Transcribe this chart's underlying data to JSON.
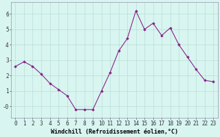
{
  "x": [
    0,
    1,
    2,
    3,
    4,
    5,
    6,
    7,
    8,
    9,
    10,
    11,
    12,
    13,
    14,
    15,
    16,
    17,
    18,
    19,
    20,
    21,
    22,
    23
  ],
  "y": [
    2.6,
    2.9,
    2.6,
    2.1,
    1.5,
    1.1,
    0.7,
    -0.2,
    -0.2,
    -0.2,
    1.0,
    2.2,
    3.6,
    4.4,
    6.2,
    5.0,
    5.4,
    4.6,
    5.1,
    4.0,
    3.2,
    2.4,
    1.7,
    1.6
  ],
  "line_color": "#882288",
  "marker": "D",
  "marker_size": 1.8,
  "bg_color": "#d8f5f0",
  "grid_color": "#b8deda",
  "xlabel": "Windchill (Refroidissement éolien,°C)",
  "xlabel_fontsize": 6.0,
  "tick_fontsize": 5.5,
  "ytick_labels": [
    "-0",
    "1",
    "2",
    "3",
    "4",
    "5",
    "6"
  ],
  "ytick_vals": [
    0,
    1,
    2,
    3,
    4,
    5,
    6
  ],
  "ylim": [
    -0.75,
    6.75
  ],
  "xlim": [
    -0.5,
    23.5
  ],
  "xticks": [
    0,
    1,
    2,
    3,
    4,
    5,
    6,
    7,
    8,
    9,
    10,
    11,
    12,
    13,
    14,
    15,
    16,
    17,
    18,
    19,
    20,
    21,
    22,
    23
  ]
}
